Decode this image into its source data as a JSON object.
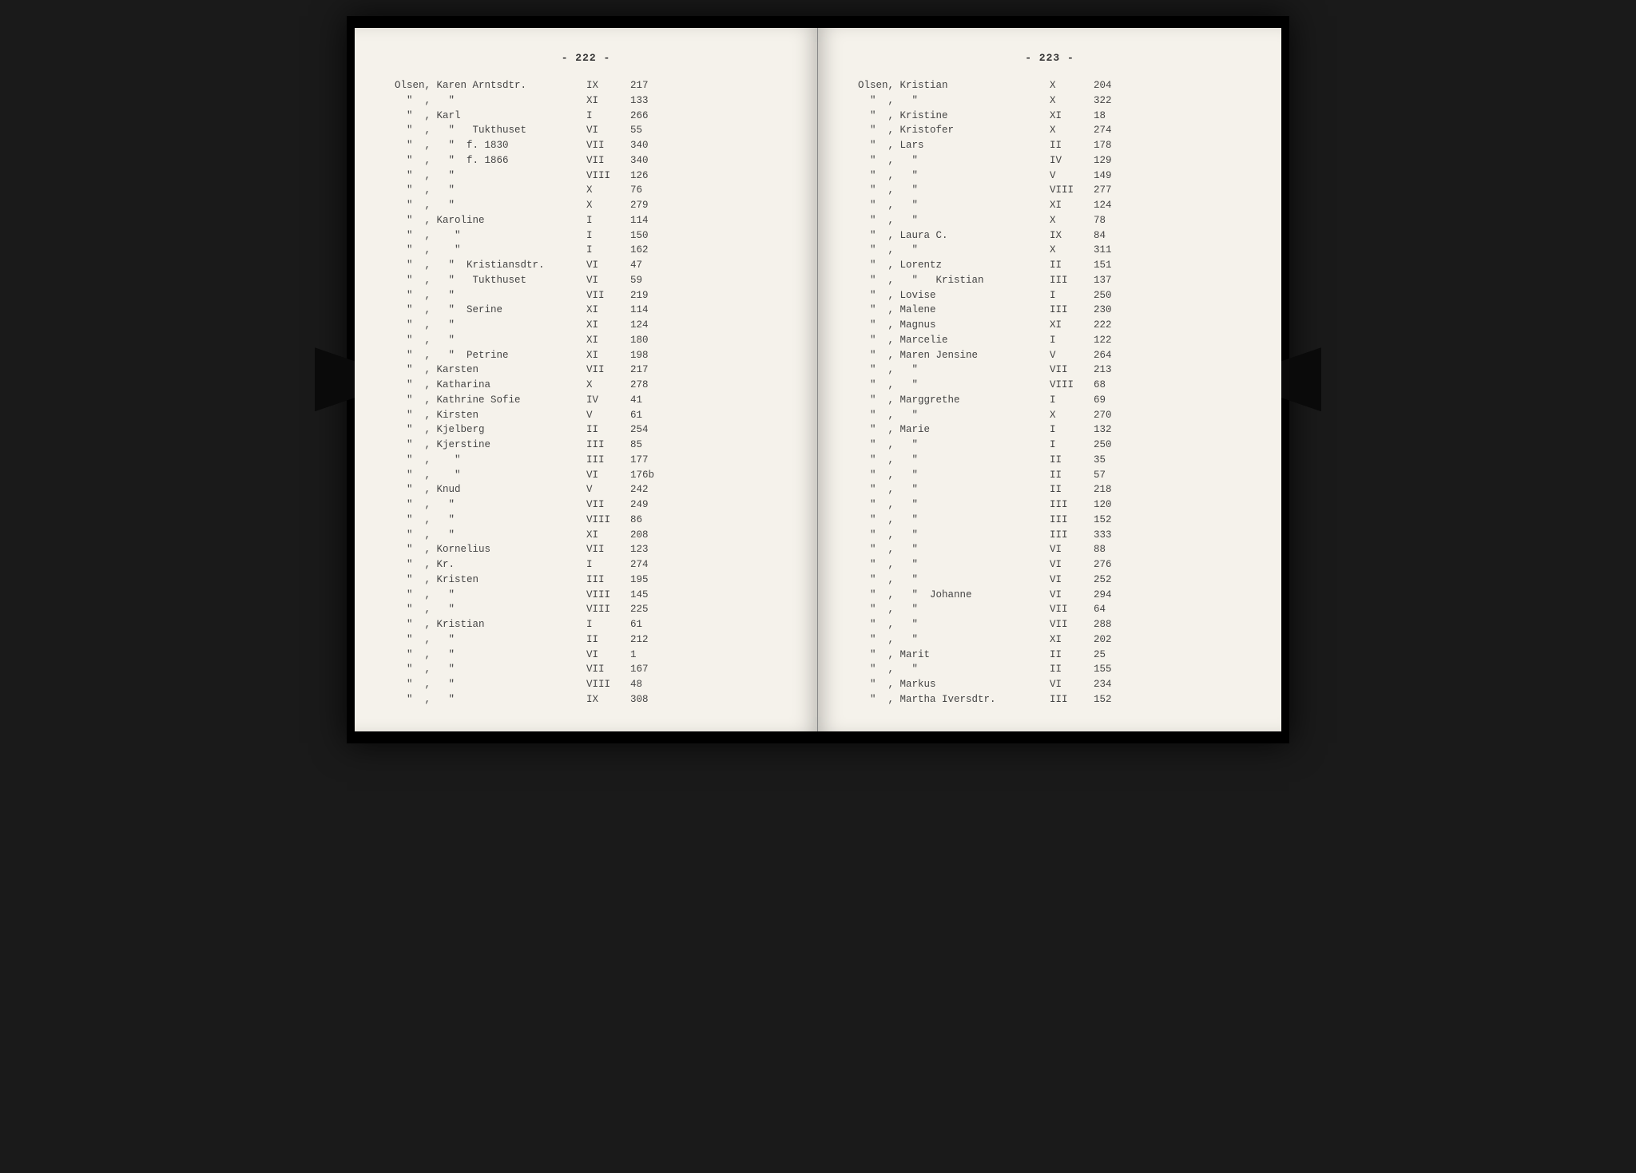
{
  "left_page_number": "- 222 -",
  "right_page_number": "- 223 -",
  "typography": {
    "font_family": "Courier New",
    "font_size_pt": 12.5,
    "color": "#444444",
    "line_height": 1.5
  },
  "colors": {
    "page_bg": "#f5f2eb",
    "book_bg": "#000000",
    "body_bg": "#1a1a1a"
  },
  "left_entries": [
    {
      "name": "Olsen, Karen Arntsdtr.",
      "vol": "IX",
      "page": "217"
    },
    {
      "name": "  \"  ,   \"",
      "vol": "XI",
      "page": "133"
    },
    {
      "name": "  \"  , Karl",
      "vol": "I",
      "page": "266"
    },
    {
      "name": "  \"  ,   \"   Tukthuset",
      "vol": "VI",
      "page": "55"
    },
    {
      "name": "  \"  ,   \"  f. 1830",
      "vol": "VII",
      "page": "340"
    },
    {
      "name": "  \"  ,   \"  f. 1866",
      "vol": "VII",
      "page": "340"
    },
    {
      "name": "  \"  ,   \"",
      "vol": "VIII",
      "page": "126"
    },
    {
      "name": "  \"  ,   \"",
      "vol": "X",
      "page": "76"
    },
    {
      "name": "  \"  ,   \"",
      "vol": "X",
      "page": "279"
    },
    {
      "name": "  \"  , Karoline",
      "vol": "I",
      "page": "114"
    },
    {
      "name": "  \"  ,    \"",
      "vol": "I",
      "page": "150"
    },
    {
      "name": "  \"  ,    \"",
      "vol": "I",
      "page": "162"
    },
    {
      "name": "  \"  ,   \"  Kristiansdtr.",
      "vol": "VI",
      "page": "47"
    },
    {
      "name": "  \"  ,   \"   Tukthuset",
      "vol": "VI",
      "page": "59"
    },
    {
      "name": "  \"  ,   \"",
      "vol": "VII",
      "page": "219"
    },
    {
      "name": "  \"  ,   \"  Serine",
      "vol": "XI",
      "page": "114"
    },
    {
      "name": "  \"  ,   \"",
      "vol": "XI",
      "page": "124"
    },
    {
      "name": "  \"  ,   \"",
      "vol": "XI",
      "page": "180"
    },
    {
      "name": "  \"  ,   \"  Petrine",
      "vol": "XI",
      "page": "198"
    },
    {
      "name": "  \"  , Karsten",
      "vol": "VII",
      "page": "217"
    },
    {
      "name": "  \"  , Katharina",
      "vol": "X",
      "page": "278"
    },
    {
      "name": "  \"  , Kathrine Sofie",
      "vol": "IV",
      "page": "41"
    },
    {
      "name": "  \"  , Kirsten",
      "vol": "V",
      "page": "61"
    },
    {
      "name": "  \"  , Kjelberg",
      "vol": "II",
      "page": "254"
    },
    {
      "name": "  \"  , Kjerstine",
      "vol": "III",
      "page": "85"
    },
    {
      "name": "  \"  ,    \"",
      "vol": "III",
      "page": "177"
    },
    {
      "name": "  \"  ,    \"",
      "vol": "VI",
      "page": "176b"
    },
    {
      "name": "  \"  , Knud",
      "vol": "V",
      "page": "242"
    },
    {
      "name": "  \"  ,   \"",
      "vol": "VII",
      "page": "249"
    },
    {
      "name": "  \"  ,   \"",
      "vol": "VIII",
      "page": "86"
    },
    {
      "name": "  \"  ,   \"",
      "vol": "XI",
      "page": "208"
    },
    {
      "name": "  \"  , Kornelius",
      "vol": "VII",
      "page": "123"
    },
    {
      "name": "  \"  , Kr.",
      "vol": "I",
      "page": "274"
    },
    {
      "name": "  \"  , Kristen",
      "vol": "III",
      "page": "195"
    },
    {
      "name": "  \"  ,   \"",
      "vol": "VIII",
      "page": "145"
    },
    {
      "name": "  \"  ,   \"",
      "vol": "VIII",
      "page": "225"
    },
    {
      "name": "  \"  , Kristian",
      "vol": "I",
      "page": "61"
    },
    {
      "name": "  \"  ,   \"",
      "vol": "II",
      "page": "212"
    },
    {
      "name": "  \"  ,   \"",
      "vol": "VI",
      "page": "1"
    },
    {
      "name": "  \"  ,   \"",
      "vol": "VII",
      "page": "167"
    },
    {
      "name": "  \"  ,   \"",
      "vol": "VIII",
      "page": "48"
    },
    {
      "name": "  \"  ,   \"",
      "vol": "IX",
      "page": "308"
    }
  ],
  "right_entries": [
    {
      "name": "Olsen, Kristian",
      "vol": "X",
      "page": "204"
    },
    {
      "name": "  \"  ,   \"",
      "vol": "X",
      "page": "322"
    },
    {
      "name": "  \"  , Kristine",
      "vol": "XI",
      "page": "18"
    },
    {
      "name": "  \"  , Kristofer",
      "vol": "X",
      "page": "274"
    },
    {
      "name": "  \"  , Lars",
      "vol": "II",
      "page": "178"
    },
    {
      "name": "  \"  ,   \"",
      "vol": "IV",
      "page": "129"
    },
    {
      "name": "  \"  ,   \"",
      "vol": "V",
      "page": "149"
    },
    {
      "name": "  \"  ,   \"",
      "vol": "VIII",
      "page": "277"
    },
    {
      "name": "  \"  ,   \"",
      "vol": "XI",
      "page": "124"
    },
    {
      "name": "  \"  ,   \"",
      "vol": "X",
      "page": "78"
    },
    {
      "name": "  \"  , Laura C.",
      "vol": "IX",
      "page": "84"
    },
    {
      "name": "  \"  ,   \"",
      "vol": "X",
      "page": "311"
    },
    {
      "name": "  \"  , Lorentz",
      "vol": "II",
      "page": "151"
    },
    {
      "name": "  \"  ,   \"   Kristian",
      "vol": "III",
      "page": "137"
    },
    {
      "name": "  \"  , Lovise",
      "vol": "I",
      "page": "250"
    },
    {
      "name": "  \"  , Malene",
      "vol": "III",
      "page": "230"
    },
    {
      "name": "  \"  , Magnus",
      "vol": "XI",
      "page": "222"
    },
    {
      "name": "  \"  , Marcelie",
      "vol": "I",
      "page": "122"
    },
    {
      "name": "  \"  , Maren Jensine",
      "vol": "V",
      "page": "264"
    },
    {
      "name": "  \"  ,   \"",
      "vol": "VII",
      "page": "213"
    },
    {
      "name": "  \"  ,   \"",
      "vol": "VIII",
      "page": "68"
    },
    {
      "name": "  \"  , Marggrethe",
      "vol": "I",
      "page": "69"
    },
    {
      "name": "  \"  ,   \"",
      "vol": "X",
      "page": "270"
    },
    {
      "name": "  \"  , Marie",
      "vol": "I",
      "page": "132"
    },
    {
      "name": "  \"  ,   \"",
      "vol": "I",
      "page": "250"
    },
    {
      "name": "  \"  ,   \"",
      "vol": "II",
      "page": "35"
    },
    {
      "name": "  \"  ,   \"",
      "vol": "II",
      "page": "57"
    },
    {
      "name": "  \"  ,   \"",
      "vol": "II",
      "page": "218"
    },
    {
      "name": "  \"  ,   \"",
      "vol": "III",
      "page": "120"
    },
    {
      "name": "  \"  ,   \"",
      "vol": "III",
      "page": "152"
    },
    {
      "name": "  \"  ,   \"",
      "vol": "III",
      "page": "333"
    },
    {
      "name": "  \"  ,   \"",
      "vol": "VI",
      "page": "88"
    },
    {
      "name": "  \"  ,   \"",
      "vol": "VI",
      "page": "276"
    },
    {
      "name": "  \"  ,   \"",
      "vol": "VI",
      "page": "252"
    },
    {
      "name": "  \"  ,   \"  Johanne",
      "vol": "VI",
      "page": "294"
    },
    {
      "name": "  \"  ,   \"",
      "vol": "VII",
      "page": "64"
    },
    {
      "name": "  \"  ,   \"",
      "vol": "VII",
      "page": "288"
    },
    {
      "name": "  \"  ,   \"",
      "vol": "XI",
      "page": "202"
    },
    {
      "name": "  \"  , Marit",
      "vol": "II",
      "page": "25"
    },
    {
      "name": "  \"  ,   \"",
      "vol": "II",
      "page": "155"
    },
    {
      "name": "  \"  , Markus",
      "vol": "VI",
      "page": "234"
    },
    {
      "name": "  \"  , Martha Iversdtr.",
      "vol": "III",
      "page": "152"
    }
  ]
}
